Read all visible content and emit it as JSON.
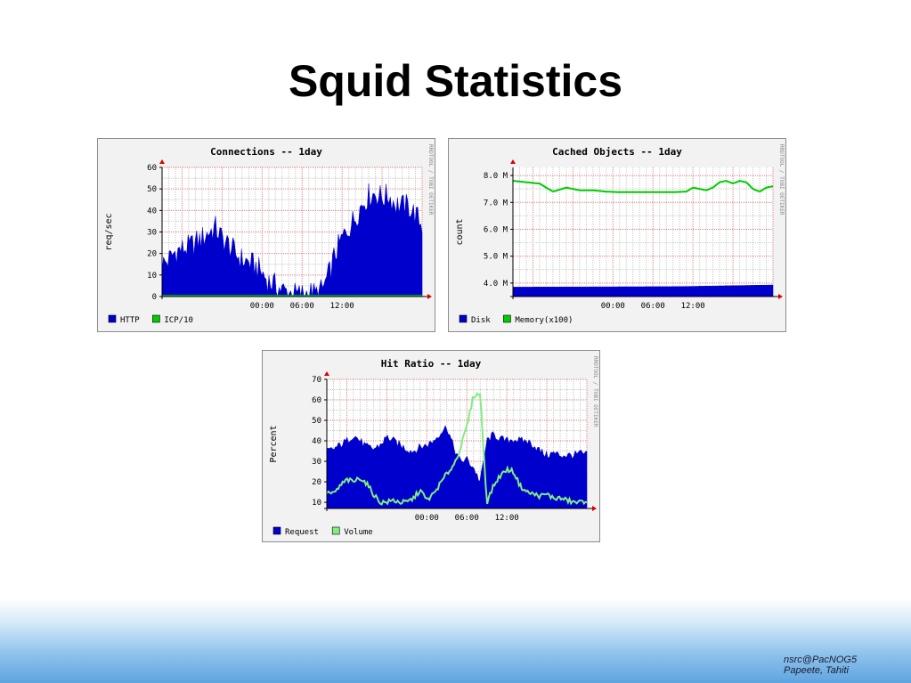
{
  "slide": {
    "title": "Squid Statistics",
    "footer_line1": "nsrc@PacNOG5",
    "footer_line2": "Papeete, Tahiti"
  },
  "colors": {
    "blue": "#0000cc",
    "green": "#00cc00",
    "light_green": "#80ee80",
    "grid_minor": "#c8c8c8",
    "grid_major": "#dd8080",
    "panel_bg": "#f2f2f2"
  },
  "chart_data": [
    {
      "type": "area",
      "title": "Connections -- 1day",
      "ylabel": "req/sec",
      "watermark": "RRDTOOL / TOBI OETIKER",
      "ylim": [
        0,
        60
      ],
      "yticks": [
        "0",
        "10",
        "20",
        "30",
        "40",
        "50",
        "60"
      ],
      "xticks": [
        "00:00",
        "06:00",
        "12:00"
      ],
      "x_hours_range": [
        -15,
        9
      ],
      "legend": [
        "HTTP",
        "ICP/10"
      ],
      "series": [
        {
          "name": "HTTP",
          "style": "area",
          "color": "#0000cc",
          "x_hours": [
            -15,
            -14,
            -13,
            -12,
            -11,
            -10,
            -9,
            -8,
            -7,
            -6,
            -5,
            -4,
            -3,
            -2,
            -1,
            0,
            1,
            2,
            3,
            4,
            5,
            6,
            7,
            8,
            9,
            10,
            11,
            12,
            13,
            14,
            15,
            16,
            17,
            18,
            19,
            20,
            21,
            22,
            23,
            24
          ],
          "values": [
            15,
            17,
            21,
            22,
            23,
            25,
            27,
            30,
            32,
            27,
            24,
            20,
            17,
            16,
            14,
            11,
            7,
            5,
            3,
            2,
            1,
            1,
            2,
            1,
            3,
            10,
            20,
            27,
            32,
            37,
            43,
            47,
            48,
            46,
            47,
            43,
            42,
            42,
            38,
            33
          ],
          "jitter": 6
        },
        {
          "name": "ICP/10",
          "style": "line",
          "color": "#00cc00",
          "x_hours": [
            -15,
            24
          ],
          "values": [
            0.3,
            0.3
          ]
        }
      ]
    },
    {
      "type": "line",
      "title": "Cached Objects -- 1day",
      "ylabel": "count",
      "watermark": "RRDTOOL / TOBI OETIKER",
      "ylim": [
        3.5,
        8.3
      ],
      "yticks": [
        "4.0 M",
        "5.0 M",
        "6.0 M",
        "7.0 M",
        "8.0 M"
      ],
      "ytick_values": [
        4,
        5,
        6,
        7,
        8
      ],
      "xticks": [
        "00:00",
        "06:00",
        "12:00"
      ],
      "x_hours_range": [
        -15,
        9
      ],
      "legend": [
        "Disk",
        "Memory(x100)"
      ],
      "series": [
        {
          "name": "Disk",
          "style": "area",
          "color": "#0000cc",
          "x_hours": [
            -15,
            10,
            24
          ],
          "values": [
            3.85,
            3.87,
            3.93
          ]
        },
        {
          "name": "Memory(x100)",
          "style": "line",
          "color": "#00cc00",
          "x_hours": [
            -15,
            -13,
            -11,
            -9,
            -7,
            -5,
            -3,
            -1,
            1,
            3,
            5,
            7,
            9,
            11,
            12,
            13,
            14,
            15,
            16,
            17,
            18,
            19,
            20,
            21,
            22,
            23,
            24
          ],
          "values": [
            7.8,
            7.75,
            7.7,
            7.4,
            7.55,
            7.45,
            7.45,
            7.4,
            7.38,
            7.38,
            7.38,
            7.38,
            7.38,
            7.4,
            7.55,
            7.5,
            7.45,
            7.55,
            7.75,
            7.8,
            7.7,
            7.8,
            7.75,
            7.5,
            7.4,
            7.55,
            7.6
          ]
        }
      ]
    },
    {
      "type": "area",
      "title": "Hit Ratio -- 1day",
      "ylabel": "Percent",
      "watermark": "RRDTOOL / TOBI OETIKER",
      "ylim": [
        7,
        70
      ],
      "yticks": [
        "10",
        "20",
        "30",
        "40",
        "50",
        "60",
        "70"
      ],
      "ytick_values": [
        10,
        20,
        30,
        40,
        50,
        60,
        70
      ],
      "xticks": [
        "00:00",
        "06:00",
        "12:00"
      ],
      "x_hours_range": [
        -15,
        9
      ],
      "legend": [
        "Request",
        "Volume"
      ],
      "series": [
        {
          "name": "Request",
          "style": "area",
          "color": "#0000cc",
          "x_hours": [
            -15,
            -14,
            -13,
            -12,
            -11,
            -10,
            -9,
            -8,
            -7,
            -6,
            -5,
            -4,
            -3,
            -2,
            -1,
            0,
            1,
            2,
            3,
            4,
            5,
            6,
            7,
            8,
            9,
            10,
            11,
            12,
            13,
            14,
            15,
            16,
            17,
            18,
            19,
            20,
            21,
            22,
            23,
            24
          ],
          "values": [
            35,
            36,
            38,
            40,
            43,
            40,
            37,
            36,
            38,
            42,
            40,
            38,
            36,
            35,
            37,
            38,
            40,
            44,
            47,
            37,
            30,
            31,
            27,
            20,
            40,
            43,
            41,
            40,
            41,
            40,
            40,
            38,
            35,
            33,
            34,
            33,
            33,
            33,
            34,
            33
          ],
          "jitter": 2
        },
        {
          "name": "Volume",
          "style": "line",
          "color": "#80ee80",
          "x_hours": [
            -15,
            -14,
            -13,
            -12,
            -11,
            -10,
            -9,
            -8,
            -7,
            -6,
            -5,
            -4,
            -3,
            -2,
            -1,
            0,
            1,
            2,
            3,
            4,
            5,
            6,
            7,
            8,
            9,
            10,
            11,
            12,
            13,
            14,
            15,
            16,
            17,
            18,
            19,
            20,
            21,
            22,
            23,
            24
          ],
          "values": [
            15,
            14,
            18,
            21,
            20,
            22,
            19,
            14,
            10,
            10,
            11,
            10,
            10,
            12,
            16,
            11,
            14,
            19,
            24,
            28,
            36,
            47,
            62,
            63,
            10,
            18,
            23,
            26,
            25,
            18,
            15,
            14,
            13,
            14,
            12,
            12,
            11,
            10,
            10,
            11
          ],
          "jitter": 1.2
        }
      ]
    }
  ]
}
